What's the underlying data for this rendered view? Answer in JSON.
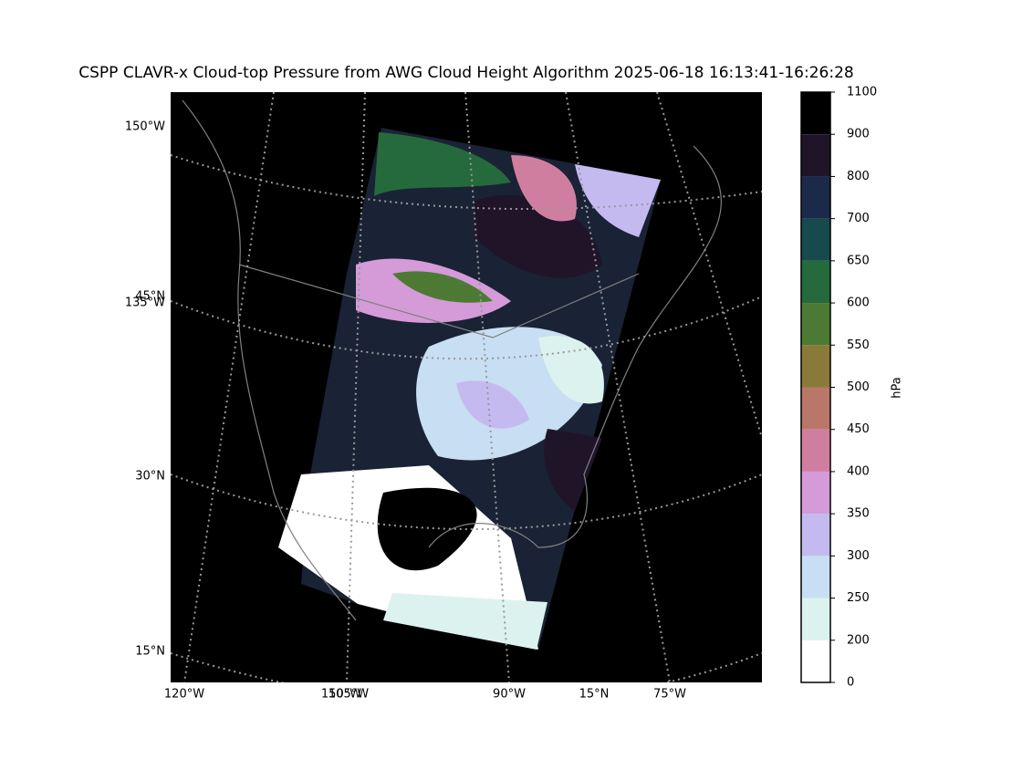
{
  "title": "CSPP CLAVR-x Cloud-top Pressure from AWG Cloud Height Algorithm 2025-06-18 16:13:41-16:26:28",
  "map": {
    "left_labels": [
      "150°W",
      "45°N",
      "135°W",
      "30°N",
      "15°N"
    ],
    "bottom_labels": [
      "120°W",
      "150°W",
      "105°W",
      "90°W",
      "15°N",
      "75°W"
    ]
  },
  "colorbar": {
    "label": "hPa",
    "bounds": [
      0,
      200,
      250,
      300,
      350,
      400,
      450,
      500,
      550,
      600,
      650,
      700,
      800,
      900,
      1100
    ],
    "colors": [
      "#ffffff",
      "#dcf2ee",
      "#c8def2",
      "#c4baf0",
      "#d59ad8",
      "#d07ea0",
      "#b87768",
      "#8a7a3a",
      "#4c7a34",
      "#256a3c",
      "#174a4c",
      "#1b2a4a",
      "#1f1428",
      "#000000"
    ]
  }
}
